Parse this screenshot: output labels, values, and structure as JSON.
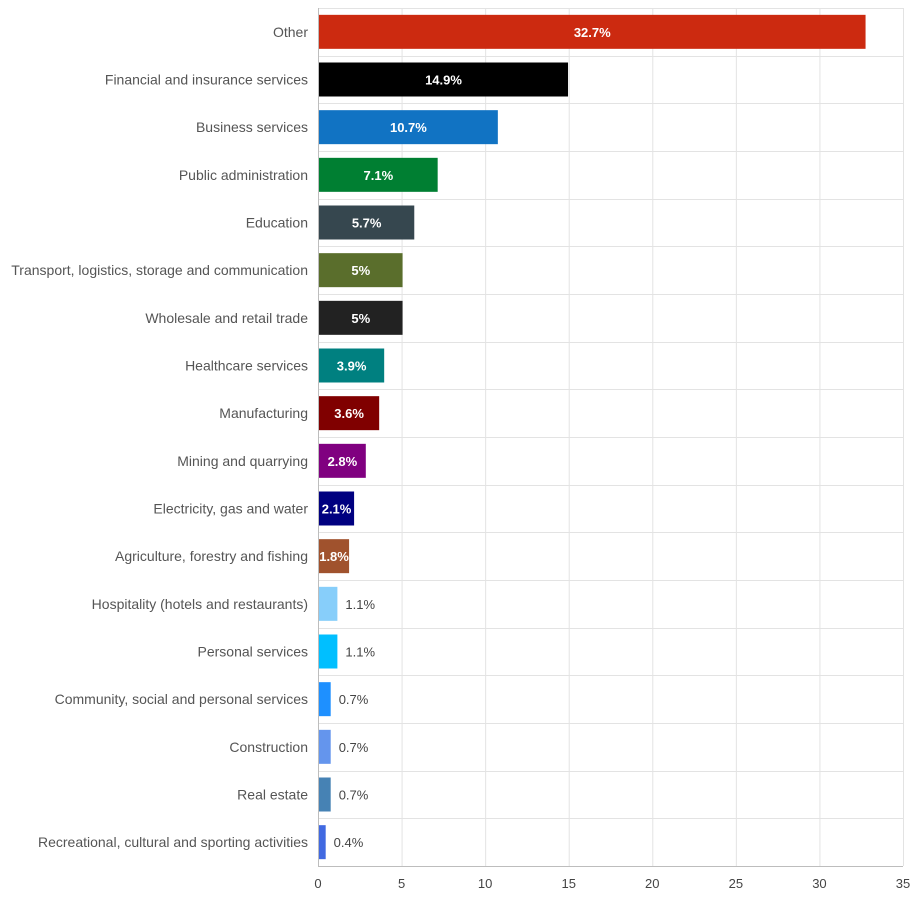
{
  "chart_data": {
    "type": "bar",
    "orientation": "horizontal",
    "title": "",
    "xlabel": "",
    "ylabel": "",
    "xlim": [
      0,
      35
    ],
    "x_ticks": [
      0,
      5,
      10,
      15,
      20,
      25,
      30,
      35
    ],
    "grid": true,
    "legend": "none",
    "categories": [
      "Other",
      "Financial and insurance services",
      "Business services",
      "Public administration",
      "Education",
      "Transport, logistics, storage and communication",
      "Wholesale and retail trade",
      "Healthcare services",
      "Manufacturing",
      "Mining and quarrying",
      "Electricity, gas and water",
      "Agriculture, forestry and fishing",
      "Hospitality (hotels and restaurants)",
      "Personal services",
      "Community, social and personal services",
      "Construction",
      "Real estate",
      "Recreational, cultural and sporting activities"
    ],
    "values": [
      32.7,
      14.9,
      10.7,
      7.1,
      5.7,
      5,
      5,
      3.9,
      3.6,
      2.8,
      2.1,
      1.8,
      1.1,
      1.1,
      0.7,
      0.7,
      0.7,
      0.4
    ],
    "value_labels": [
      "32.7%",
      "14.9%",
      "10.7%",
      "7.1%",
      "5.7%",
      "5%",
      "5%",
      "3.9%",
      "3.6%",
      "2.8%",
      "2.1%",
      "1.8%",
      "1.1%",
      "1.1%",
      "0.7%",
      "0.7%",
      "0.7%",
      "0.4%"
    ],
    "colors": [
      "#cc2a10",
      "#000000",
      "#1173c3",
      "#007f32",
      "#36474f",
      "#5a6e2c",
      "#222222",
      "#008080",
      "#800000",
      "#800080",
      "#000080",
      "#a0522d",
      "#87cefa",
      "#00bfff",
      "#1e90ff",
      "#6495ed",
      "#4682b4",
      "#4169e1"
    ]
  }
}
